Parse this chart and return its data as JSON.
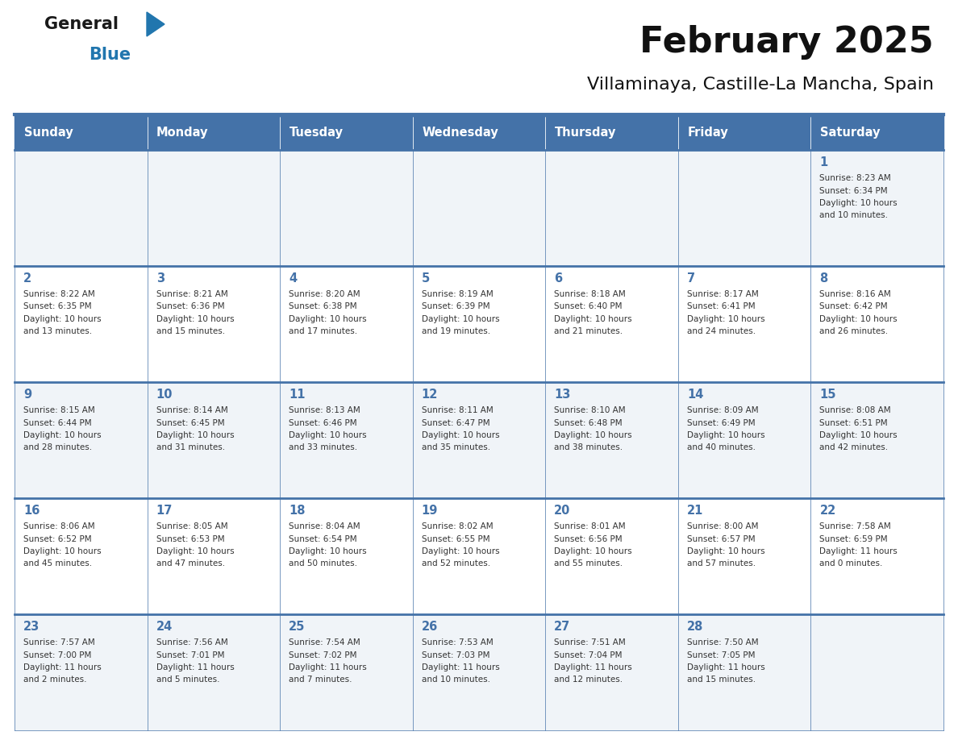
{
  "title": "February 2025",
  "subtitle": "Villaminaya, Castille-La Mancha, Spain",
  "header_bg": "#4472A8",
  "header_text_color": "#FFFFFF",
  "cell_bg_odd": "#F0F4F8",
  "cell_bg_even": "#FFFFFF",
  "day_number_color": "#4472A8",
  "cell_text_color": "#333333",
  "border_color": "#4472A8",
  "sep_line_color": "#4472A8",
  "days_of_week": [
    "Sunday",
    "Monday",
    "Tuesday",
    "Wednesday",
    "Thursday",
    "Friday",
    "Saturday"
  ],
  "weeks": [
    [
      {
        "day": "",
        "info": ""
      },
      {
        "day": "",
        "info": ""
      },
      {
        "day": "",
        "info": ""
      },
      {
        "day": "",
        "info": ""
      },
      {
        "day": "",
        "info": ""
      },
      {
        "day": "",
        "info": ""
      },
      {
        "day": "1",
        "info": "Sunrise: 8:23 AM\nSunset: 6:34 PM\nDaylight: 10 hours\nand 10 minutes."
      }
    ],
    [
      {
        "day": "2",
        "info": "Sunrise: 8:22 AM\nSunset: 6:35 PM\nDaylight: 10 hours\nand 13 minutes."
      },
      {
        "day": "3",
        "info": "Sunrise: 8:21 AM\nSunset: 6:36 PM\nDaylight: 10 hours\nand 15 minutes."
      },
      {
        "day": "4",
        "info": "Sunrise: 8:20 AM\nSunset: 6:38 PM\nDaylight: 10 hours\nand 17 minutes."
      },
      {
        "day": "5",
        "info": "Sunrise: 8:19 AM\nSunset: 6:39 PM\nDaylight: 10 hours\nand 19 minutes."
      },
      {
        "day": "6",
        "info": "Sunrise: 8:18 AM\nSunset: 6:40 PM\nDaylight: 10 hours\nand 21 minutes."
      },
      {
        "day": "7",
        "info": "Sunrise: 8:17 AM\nSunset: 6:41 PM\nDaylight: 10 hours\nand 24 minutes."
      },
      {
        "day": "8",
        "info": "Sunrise: 8:16 AM\nSunset: 6:42 PM\nDaylight: 10 hours\nand 26 minutes."
      }
    ],
    [
      {
        "day": "9",
        "info": "Sunrise: 8:15 AM\nSunset: 6:44 PM\nDaylight: 10 hours\nand 28 minutes."
      },
      {
        "day": "10",
        "info": "Sunrise: 8:14 AM\nSunset: 6:45 PM\nDaylight: 10 hours\nand 31 minutes."
      },
      {
        "day": "11",
        "info": "Sunrise: 8:13 AM\nSunset: 6:46 PM\nDaylight: 10 hours\nand 33 minutes."
      },
      {
        "day": "12",
        "info": "Sunrise: 8:11 AM\nSunset: 6:47 PM\nDaylight: 10 hours\nand 35 minutes."
      },
      {
        "day": "13",
        "info": "Sunrise: 8:10 AM\nSunset: 6:48 PM\nDaylight: 10 hours\nand 38 minutes."
      },
      {
        "day": "14",
        "info": "Sunrise: 8:09 AM\nSunset: 6:49 PM\nDaylight: 10 hours\nand 40 minutes."
      },
      {
        "day": "15",
        "info": "Sunrise: 8:08 AM\nSunset: 6:51 PM\nDaylight: 10 hours\nand 42 minutes."
      }
    ],
    [
      {
        "day": "16",
        "info": "Sunrise: 8:06 AM\nSunset: 6:52 PM\nDaylight: 10 hours\nand 45 minutes."
      },
      {
        "day": "17",
        "info": "Sunrise: 8:05 AM\nSunset: 6:53 PM\nDaylight: 10 hours\nand 47 minutes."
      },
      {
        "day": "18",
        "info": "Sunrise: 8:04 AM\nSunset: 6:54 PM\nDaylight: 10 hours\nand 50 minutes."
      },
      {
        "day": "19",
        "info": "Sunrise: 8:02 AM\nSunset: 6:55 PM\nDaylight: 10 hours\nand 52 minutes."
      },
      {
        "day": "20",
        "info": "Sunrise: 8:01 AM\nSunset: 6:56 PM\nDaylight: 10 hours\nand 55 minutes."
      },
      {
        "day": "21",
        "info": "Sunrise: 8:00 AM\nSunset: 6:57 PM\nDaylight: 10 hours\nand 57 minutes."
      },
      {
        "day": "22",
        "info": "Sunrise: 7:58 AM\nSunset: 6:59 PM\nDaylight: 11 hours\nand 0 minutes."
      }
    ],
    [
      {
        "day": "23",
        "info": "Sunrise: 7:57 AM\nSunset: 7:00 PM\nDaylight: 11 hours\nand 2 minutes."
      },
      {
        "day": "24",
        "info": "Sunrise: 7:56 AM\nSunset: 7:01 PM\nDaylight: 11 hours\nand 5 minutes."
      },
      {
        "day": "25",
        "info": "Sunrise: 7:54 AM\nSunset: 7:02 PM\nDaylight: 11 hours\nand 7 minutes."
      },
      {
        "day": "26",
        "info": "Sunrise: 7:53 AM\nSunset: 7:03 PM\nDaylight: 11 hours\nand 10 minutes."
      },
      {
        "day": "27",
        "info": "Sunrise: 7:51 AM\nSunset: 7:04 PM\nDaylight: 11 hours\nand 12 minutes."
      },
      {
        "day": "28",
        "info": "Sunrise: 7:50 AM\nSunset: 7:05 PM\nDaylight: 11 hours\nand 15 minutes."
      },
      {
        "day": "",
        "info": ""
      }
    ]
  ],
  "logo_color_general": "#1a1a1a",
  "logo_color_blue": "#2176AE",
  "logo_triangle_color": "#2176AE",
  "fig_width": 11.88,
  "fig_height": 9.18,
  "dpi": 100
}
